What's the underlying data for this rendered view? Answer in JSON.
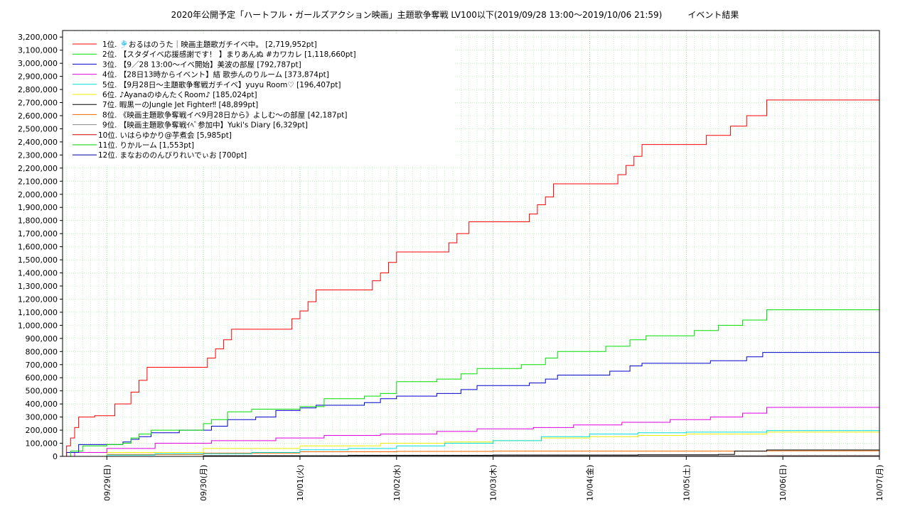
{
  "chart_data": {
    "type": "line",
    "title": "2020年公開予定「ハートフル・ガールズアクション映画」主題歌争奪戦 LV100以下(2019/09/28 13:00～2019/10/06 21:59)　　　イベント結果",
    "xlabel": "",
    "ylabel": "",
    "x_range": [
      "2019-09-28 13:00",
      "2019-10-07 00:00"
    ],
    "ylim": [
      0,
      3250000
    ],
    "y_ticks": [
      "0",
      "100,000",
      "200,000",
      "300,000",
      "400,000",
      "500,000",
      "600,000",
      "700,000",
      "800,000",
      "900,000",
      "1,000,000",
      "1,100,000",
      "1,200,000",
      "1,300,000",
      "1,400,000",
      "1,500,000",
      "1,600,000",
      "1,700,000",
      "1,800,000",
      "1,900,000",
      "2,000,000",
      "2,100,000",
      "2,200,000",
      "2,300,000",
      "2,400,000",
      "2,500,000",
      "2,600,000",
      "2,700,000",
      "2,800,000",
      "2,900,000",
      "3,000,000",
      "3,100,000",
      "3,200,000"
    ],
    "x_ticks": [
      {
        "t": "2019-09-29 00:00",
        "label": "09/29(日)"
      },
      {
        "t": "2019-09-30 00:00",
        "label": "09/30(月)"
      },
      {
        "t": "2019-10-01 00:00",
        "label": "10/01(火)"
      },
      {
        "t": "2019-10-02 00:00",
        "label": "10/02(水)"
      },
      {
        "t": "2019-10-03 00:00",
        "label": "10/03(木)"
      },
      {
        "t": "2019-10-04 00:00",
        "label": "10/04(金)"
      },
      {
        "t": "2019-10-05 00:00",
        "label": "10/05(土)"
      },
      {
        "t": "2019-10-06 00:00",
        "label": "10/06(日)"
      },
      {
        "t": "2019-10-07 00:00",
        "label": "10/07(月)"
      }
    ],
    "grid": true,
    "legend_position": "top-left",
    "series": [
      {
        "name": "1位. 🎐おるはのうた｜映画主題歌ガチイベ中。 [2,719,952pt]",
        "color": "#ff0000",
        "points": [
          [
            "2019-09-28 13:00",
            0
          ],
          [
            "2019-09-28 14:00",
            80000
          ],
          [
            "2019-09-28 15:00",
            140000
          ],
          [
            "2019-09-28 16:00",
            220000
          ],
          [
            "2019-09-28 17:00",
            300000
          ],
          [
            "2019-09-28 21:00",
            310000
          ],
          [
            "2019-09-29 02:00",
            400000
          ],
          [
            "2019-09-29 06:00",
            490000
          ],
          [
            "2019-09-29 08:00",
            580000
          ],
          [
            "2019-09-29 10:00",
            680000
          ],
          [
            "2019-09-30 01:00",
            750000
          ],
          [
            "2019-09-30 03:00",
            820000
          ],
          [
            "2019-09-30 05:00",
            890000
          ],
          [
            "2019-09-30 07:00",
            970000
          ],
          [
            "2019-09-30 22:00",
            1050000
          ],
          [
            "2019-10-01 00:00",
            1110000
          ],
          [
            "2019-10-01 02:00",
            1180000
          ],
          [
            "2019-10-01 04:00",
            1270000
          ],
          [
            "2019-10-01 18:00",
            1340000
          ],
          [
            "2019-10-01 20:00",
            1400000
          ],
          [
            "2019-10-01 22:00",
            1480000
          ],
          [
            "2019-10-02 00:00",
            1560000
          ],
          [
            "2019-10-02 13:00",
            1630000
          ],
          [
            "2019-10-02 15:00",
            1700000
          ],
          [
            "2019-10-02 18:00",
            1790000
          ],
          [
            "2019-10-03 09:00",
            1850000
          ],
          [
            "2019-10-03 11:00",
            1920000
          ],
          [
            "2019-10-03 13:00",
            1980000
          ],
          [
            "2019-10-03 15:00",
            2080000
          ],
          [
            "2019-10-04 07:00",
            2150000
          ],
          [
            "2019-10-04 09:00",
            2220000
          ],
          [
            "2019-10-04 11:00",
            2290000
          ],
          [
            "2019-10-04 13:00",
            2380000
          ],
          [
            "2019-10-05 05:00",
            2450000
          ],
          [
            "2019-10-05 11:00",
            2520000
          ],
          [
            "2019-10-05 15:00",
            2600000
          ],
          [
            "2019-10-05 20:00",
            2719952
          ]
        ]
      },
      {
        "name": "2位. 【スタダイベ応援感謝です！ 】まりあんぬ #カワカレ [1,118,660pt]",
        "color": "#00dd00",
        "points": [
          [
            "2019-09-28 13:00",
            0
          ],
          [
            "2019-09-28 15:00",
            40000
          ],
          [
            "2019-09-28 18:00",
            80000
          ],
          [
            "2019-09-29 00:00",
            90000
          ],
          [
            "2019-09-29 04:00",
            100000
          ],
          [
            "2019-09-29 06:00",
            140000
          ],
          [
            "2019-09-29 08:00",
            170000
          ],
          [
            "2019-09-29 11:00",
            200000
          ],
          [
            "2019-09-30 00:00",
            250000
          ],
          [
            "2019-09-30 02:00",
            280000
          ],
          [
            "2019-09-30 06:00",
            340000
          ],
          [
            "2019-09-30 12:00",
            360000
          ],
          [
            "2019-10-01 00:00",
            380000
          ],
          [
            "2019-10-01 06:00",
            440000
          ],
          [
            "2019-10-01 16:00",
            460000
          ],
          [
            "2019-10-01 20:00",
            480000
          ],
          [
            "2019-10-02 00:00",
            570000
          ],
          [
            "2019-10-02 10:00",
            590000
          ],
          [
            "2019-10-02 16:00",
            630000
          ],
          [
            "2019-10-02 20:00",
            670000
          ],
          [
            "2019-10-03 07:00",
            700000
          ],
          [
            "2019-10-03 13:00",
            750000
          ],
          [
            "2019-10-03 16:00",
            800000
          ],
          [
            "2019-10-04 04:00",
            840000
          ],
          [
            "2019-10-04 10:00",
            890000
          ],
          [
            "2019-10-04 14:00",
            920000
          ],
          [
            "2019-10-05 02:00",
            960000
          ],
          [
            "2019-10-05 08:00",
            1000000
          ],
          [
            "2019-10-05 14:00",
            1040000
          ],
          [
            "2019-10-05 20:00",
            1118660
          ]
        ]
      },
      {
        "name": "3位. 【9／28 13:00～イベ開始】美波の部屋 [792,787pt]",
        "color": "#0000cc",
        "points": [
          [
            "2019-09-28 13:00",
            0
          ],
          [
            "2019-09-28 14:00",
            30000
          ],
          [
            "2019-09-28 17:00",
            90000
          ],
          [
            "2019-09-29 04:00",
            110000
          ],
          [
            "2019-09-29 06:00",
            130000
          ],
          [
            "2019-09-29 08:00",
            150000
          ],
          [
            "2019-09-29 11:00",
            180000
          ],
          [
            "2019-09-29 18:00",
            200000
          ],
          [
            "2019-09-30 02:00",
            230000
          ],
          [
            "2019-09-30 06:00",
            280000
          ],
          [
            "2019-09-30 13:00",
            300000
          ],
          [
            "2019-09-30 18:00",
            350000
          ],
          [
            "2019-10-01 00:00",
            370000
          ],
          [
            "2019-10-01 04:00",
            390000
          ],
          [
            "2019-10-01 16:00",
            410000
          ],
          [
            "2019-10-01 20:00",
            440000
          ],
          [
            "2019-10-02 00:00",
            460000
          ],
          [
            "2019-10-02 10:00",
            480000
          ],
          [
            "2019-10-02 16:00",
            510000
          ],
          [
            "2019-10-02 20:00",
            540000
          ],
          [
            "2019-10-03 09:00",
            560000
          ],
          [
            "2019-10-03 13:00",
            590000
          ],
          [
            "2019-10-03 16:00",
            620000
          ],
          [
            "2019-10-04 05:00",
            650000
          ],
          [
            "2019-10-04 10:00",
            690000
          ],
          [
            "2019-10-04 13:00",
            710000
          ],
          [
            "2019-10-05 06:00",
            730000
          ],
          [
            "2019-10-05 15:00",
            760000
          ],
          [
            "2019-10-05 19:00",
            792787
          ]
        ]
      },
      {
        "name": "4位. 【28日13時からイベント】結 歌歩んのりルーム [373,874pt]",
        "color": "#dd00dd",
        "points": [
          [
            "2019-09-28 13:00",
            0
          ],
          [
            "2019-09-28 16:00",
            30000
          ],
          [
            "2019-09-29 00:00",
            60000
          ],
          [
            "2019-09-29 12:00",
            100000
          ],
          [
            "2019-09-30 02:00",
            120000
          ],
          [
            "2019-09-30 18:00",
            140000
          ],
          [
            "2019-10-01 06:00",
            160000
          ],
          [
            "2019-10-01 20:00",
            170000
          ],
          [
            "2019-10-02 10:00",
            190000
          ],
          [
            "2019-10-02 20:00",
            210000
          ],
          [
            "2019-10-03 10:00",
            220000
          ],
          [
            "2019-10-03 20:00",
            240000
          ],
          [
            "2019-10-04 08:00",
            260000
          ],
          [
            "2019-10-04 20:00",
            280000
          ],
          [
            "2019-10-05 06:00",
            300000
          ],
          [
            "2019-10-05 14:00",
            330000
          ],
          [
            "2019-10-05 20:00",
            373874
          ]
        ]
      },
      {
        "name": "5位. 【9月28日～主題歌争奪戦ガチイベ】yuyu Room♡ [196,407pt]",
        "color": "#00dddd",
        "points": [
          [
            "2019-09-28 13:00",
            0
          ],
          [
            "2019-09-29 00:00",
            10000
          ],
          [
            "2019-09-29 12:00",
            20000
          ],
          [
            "2019-09-30 12:00",
            30000
          ],
          [
            "2019-10-01 00:00",
            50000
          ],
          [
            "2019-10-01 12:00",
            60000
          ],
          [
            "2019-10-02 00:00",
            80000
          ],
          [
            "2019-10-02 12:00",
            100000
          ],
          [
            "2019-10-03 00:00",
            120000
          ],
          [
            "2019-10-03 12:00",
            150000
          ],
          [
            "2019-10-04 00:00",
            170000
          ],
          [
            "2019-10-04 12:00",
            180000
          ],
          [
            "2019-10-05 00:00",
            185000
          ],
          [
            "2019-10-05 20:00",
            196407
          ]
        ]
      },
      {
        "name": "6位. ♪AyanaのゆんたくRoom♪ [185,024pt]",
        "color": "#eeee00",
        "points": [
          [
            "2019-09-28 13:00",
            0
          ],
          [
            "2019-09-29 00:00",
            30000
          ],
          [
            "2019-09-30 00:00",
            60000
          ],
          [
            "2019-10-01 00:00",
            80000
          ],
          [
            "2019-10-01 20:00",
            100000
          ],
          [
            "2019-10-02 12:00",
            110000
          ],
          [
            "2019-10-03 00:00",
            120000
          ],
          [
            "2019-10-03 12:00",
            140000
          ],
          [
            "2019-10-04 00:00",
            150000
          ],
          [
            "2019-10-04 12:00",
            160000
          ],
          [
            "2019-10-05 00:00",
            170000
          ],
          [
            "2019-10-05 20:00",
            185024
          ]
        ]
      },
      {
        "name": "7位. 暇黒ーのJungle Jet Fighter‼ [48,899pt]",
        "color": "#000000",
        "points": [
          [
            "2019-09-28 13:00",
            0
          ],
          [
            "2019-09-30 00:00",
            5000
          ],
          [
            "2019-10-01 12:00",
            8000
          ],
          [
            "2019-10-03 00:00",
            10000
          ],
          [
            "2019-10-04 12:00",
            12000
          ],
          [
            "2019-10-05 08:00",
            15000
          ],
          [
            "2019-10-05 12:00",
            40000
          ],
          [
            "2019-10-05 20:00",
            48899
          ]
        ]
      },
      {
        "name": "8位. 《映画主題歌争奪戦イベ9月28日から》よしむ～の部屋 [42,187pt]",
        "color": "#ee6600",
        "points": [
          [
            "2019-09-28 13:00",
            0
          ],
          [
            "2019-09-29 00:00",
            15000
          ],
          [
            "2019-09-30 00:00",
            25000
          ],
          [
            "2019-10-01 00:00",
            35000
          ],
          [
            "2019-10-02 00:00",
            38000
          ],
          [
            "2019-10-03 00:00",
            40000
          ],
          [
            "2019-10-05 20:00",
            42187
          ]
        ]
      },
      {
        "name": "9位. 【映画主題歌争奪戦ｲﾍﾞ参加中】Yuki's Diary [6,329pt]",
        "color": "#888888",
        "points": [
          [
            "2019-09-28 13:00",
            0
          ],
          [
            "2019-09-30 00:00",
            3000
          ],
          [
            "2019-10-02 00:00",
            5000
          ],
          [
            "2019-10-05 20:00",
            6329
          ]
        ]
      },
      {
        "name": "10位. いはらゆかり@芋煮会 [5,985pt]",
        "color": "#cc0000",
        "points": [
          [
            "2019-09-28 13:00",
            0
          ],
          [
            "2019-09-30 00:00",
            2000
          ],
          [
            "2019-10-02 00:00",
            4000
          ],
          [
            "2019-10-05 20:00",
            5985
          ]
        ]
      },
      {
        "name": "11位. りかルーム [1,553pt]",
        "color": "#00cc00",
        "points": [
          [
            "2019-09-28 13:00",
            0
          ],
          [
            "2019-10-01 00:00",
            800
          ],
          [
            "2019-10-05 20:00",
            1553
          ]
        ]
      },
      {
        "name": "12位. まなおののんびりれいでぃお [700pt]",
        "color": "#0000aa",
        "points": [
          [
            "2019-09-28 13:00",
            0
          ],
          [
            "2019-10-02 00:00",
            400
          ],
          [
            "2019-10-05 20:00",
            700
          ]
        ]
      }
    ]
  }
}
